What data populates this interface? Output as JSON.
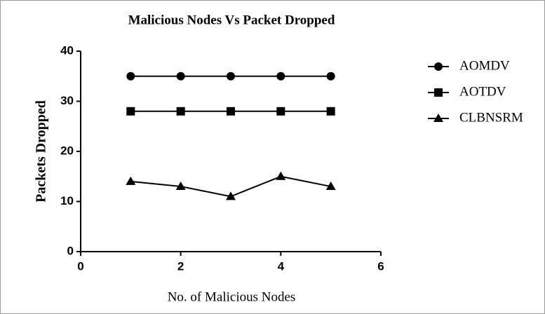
{
  "chart_data": {
    "type": "line",
    "title": "Malicious Nodes Vs Packet Dropped",
    "xlabel": "No. of Malicious Nodes",
    "ylabel": "Packets Dropped",
    "x": [
      1,
      2,
      3,
      4,
      5
    ],
    "series": [
      {
        "name": "AOMDV",
        "color": "#000000",
        "marker": "circle",
        "values": [
          35,
          35,
          35,
          35,
          35
        ]
      },
      {
        "name": "AOTDV",
        "color": "#000000",
        "marker": "square",
        "values": [
          28,
          28,
          28,
          28,
          28
        ]
      },
      {
        "name": "CLBNSRM",
        "color": "#000000",
        "marker": "triangle",
        "values": [
          14,
          13,
          11,
          15,
          13
        ]
      }
    ],
    "xlim": [
      0,
      6
    ],
    "xticks": [
      0,
      2,
      4,
      6
    ],
    "ylim": [
      0,
      40
    ],
    "yticks": [
      0,
      10,
      20,
      30,
      40
    ],
    "grid": false,
    "legend": "right"
  }
}
